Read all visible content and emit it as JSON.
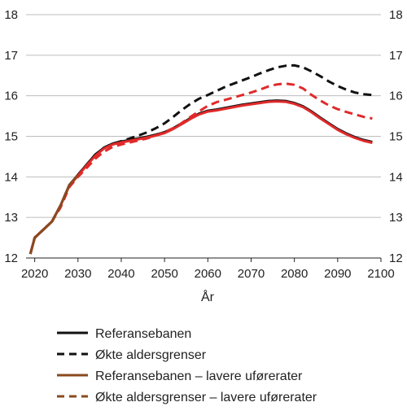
{
  "chart_data": {
    "type": "line",
    "xlabel": "År",
    "ylabel": "",
    "title": "",
    "xlim": [
      2018,
      2100
    ],
    "ylim": [
      12,
      18
    ],
    "x_ticks": [
      2020,
      2030,
      2040,
      2050,
      2060,
      2070,
      2080,
      2090,
      2100
    ],
    "y_ticks": [
      12,
      13,
      14,
      15,
      16,
      17,
      18
    ],
    "grid": "horizontal",
    "legend_position": "bottom",
    "x": [
      2019,
      2020,
      2022,
      2024,
      2026,
      2028,
      2030,
      2032,
      2034,
      2036,
      2038,
      2040,
      2042,
      2044,
      2046,
      2048,
      2050,
      2052,
      2054,
      2056,
      2058,
      2060,
      2062,
      2064,
      2066,
      2068,
      2070,
      2072,
      2074,
      2076,
      2078,
      2080,
      2082,
      2084,
      2086,
      2088,
      2090,
      2092,
      2094,
      2096,
      2098
    ],
    "series": [
      {
        "name": "Økte aldersgrenser",
        "color": "#111111",
        "dash": true,
        "values": [
          12.1,
          12.5,
          12.7,
          12.9,
          13.3,
          13.8,
          14.05,
          14.3,
          14.55,
          14.72,
          14.82,
          14.88,
          14.95,
          15.02,
          15.1,
          15.2,
          15.32,
          15.48,
          15.65,
          15.8,
          15.93,
          16.02,
          16.12,
          16.22,
          16.3,
          16.38,
          16.46,
          16.55,
          16.63,
          16.7,
          16.74,
          16.75,
          16.7,
          16.6,
          16.48,
          16.35,
          16.24,
          16.15,
          16.08,
          16.04,
          16.02
        ]
      },
      {
        "name": "Referansebanen",
        "color": "#111111",
        "dash": false,
        "values": [
          12.1,
          12.5,
          12.7,
          12.9,
          13.3,
          13.8,
          14.05,
          14.3,
          14.55,
          14.72,
          14.82,
          14.87,
          14.91,
          14.95,
          14.99,
          15.04,
          15.1,
          15.2,
          15.32,
          15.45,
          15.56,
          15.63,
          15.66,
          15.7,
          15.74,
          15.78,
          15.81,
          15.84,
          15.87,
          15.88,
          15.87,
          15.82,
          15.74,
          15.61,
          15.46,
          15.32,
          15.18,
          15.07,
          14.98,
          14.91,
          14.86
        ]
      },
      {
        "name": "Økte aldersgrenser – lavere uførerater",
        "color": "#e02a2a",
        "dash": true,
        "values": [
          12.1,
          12.5,
          12.7,
          12.9,
          13.25,
          13.75,
          14.0,
          14.22,
          14.45,
          14.62,
          14.74,
          14.8,
          14.85,
          14.9,
          14.95,
          15.02,
          15.1,
          15.2,
          15.33,
          15.48,
          15.62,
          15.75,
          15.84,
          15.9,
          15.96,
          16.02,
          16.08,
          16.15,
          16.23,
          16.28,
          16.3,
          16.27,
          16.18,
          16.02,
          15.88,
          15.76,
          15.67,
          15.6,
          15.54,
          15.48,
          15.44
        ]
      },
      {
        "name": "Referansebanen – lavere uførerater",
        "color": "#e02a2a",
        "dash": false,
        "values": [
          12.1,
          12.5,
          12.7,
          12.9,
          13.3,
          13.78,
          14.03,
          14.28,
          14.52,
          14.7,
          14.8,
          14.85,
          14.89,
          14.93,
          14.97,
          15.02,
          15.08,
          15.18,
          15.3,
          15.43,
          15.54,
          15.61,
          15.64,
          15.68,
          15.72,
          15.76,
          15.79,
          15.82,
          15.85,
          15.86,
          15.85,
          15.8,
          15.72,
          15.59,
          15.44,
          15.3,
          15.16,
          15.05,
          14.96,
          14.89,
          14.84
        ]
      }
    ],
    "early_segment": {
      "color": "#8a4a1f",
      "x_end": 2030
    },
    "legend": [
      {
        "label": "Referansebanen",
        "color": "#111111",
        "dash": false
      },
      {
        "label": "Økte aldersgrenser",
        "color": "#111111",
        "dash": true
      },
      {
        "label": "Referansebanen – lavere uførerater",
        "color": "#8a4a1f",
        "dash": false
      },
      {
        "label": "Økte aldersgrenser – lavere uførerater",
        "color": "#8a4a1f",
        "dash": true
      }
    ]
  }
}
